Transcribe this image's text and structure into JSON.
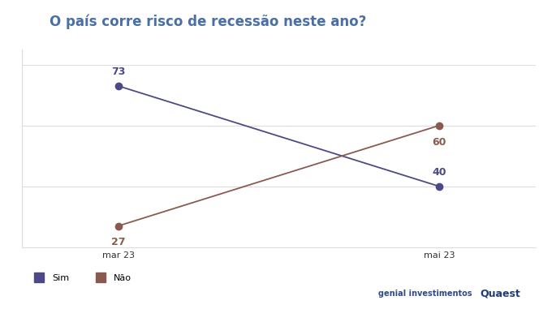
{
  "chart_data": {
    "type": "line",
    "title": "O país corre risco de recessão neste ano?",
    "categories": [
      "mar 23",
      "mai 23"
    ],
    "series": [
      {
        "name": "Sim",
        "color": "#4b4a86",
        "marker": "o",
        "values": [
          73,
          40
        ]
      },
      {
        "name": "Não",
        "color": "#8a5a50",
        "marker": "o",
        "values": [
          27,
          60
        ]
      }
    ],
    "ylim": [
      20,
      85
    ],
    "yticks": [
      40,
      60,
      80
    ],
    "grid": true,
    "data_labels": true,
    "tick_labels": "x",
    "legend": "lower left",
    "annotations": [
      "genial investimentos",
      "Quaest"
    ]
  }
}
